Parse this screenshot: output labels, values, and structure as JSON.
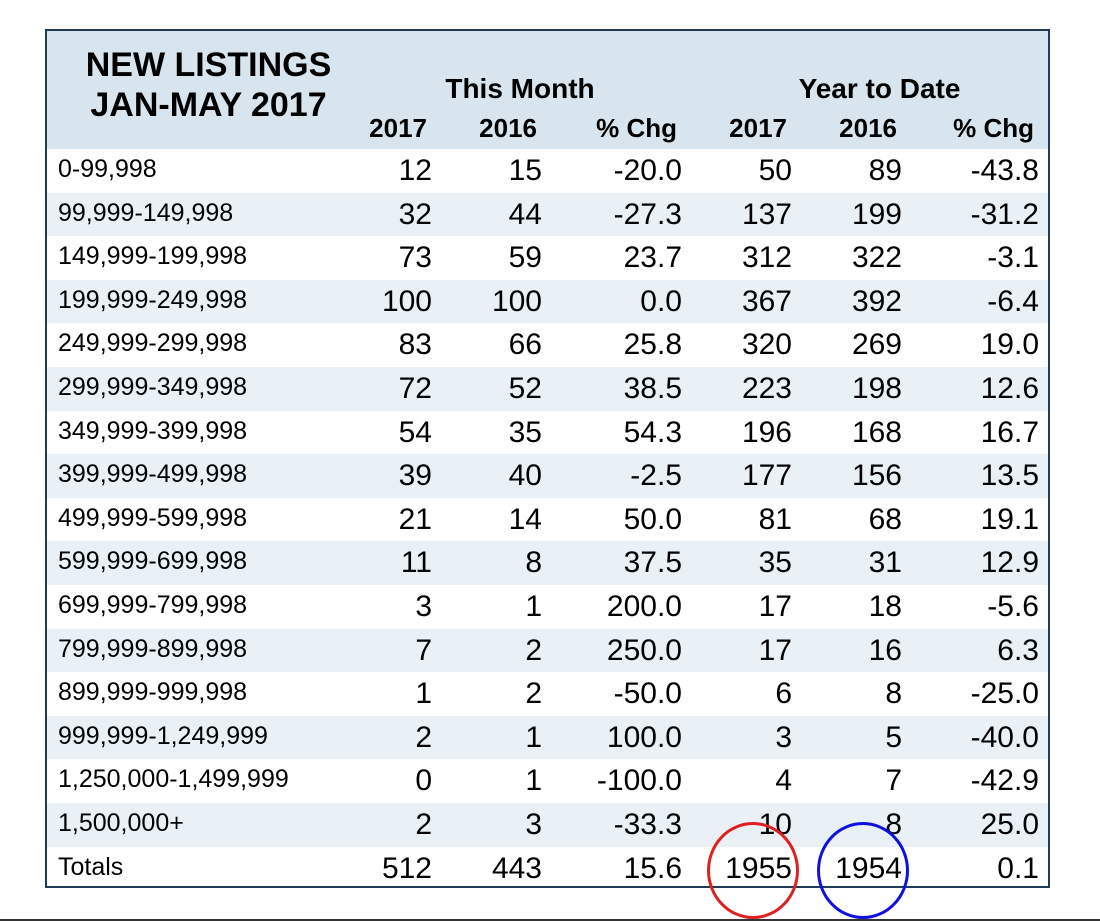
{
  "title": {
    "line1": "NEW LISTINGS",
    "line2": "JAN-MAY 2017"
  },
  "groups": {
    "this_month": "This Month",
    "year_to_date": "Year to Date"
  },
  "columns": [
    "2017",
    "2016",
    "% Chg",
    "2017",
    "2016",
    "% Chg"
  ],
  "rows": [
    {
      "label": "0-99,998",
      "values": [
        "12",
        "15",
        "-20.0",
        "50",
        "89",
        "-43.8"
      ]
    },
    {
      "label": "99,999-149,998",
      "values": [
        "32",
        "44",
        "-27.3",
        "137",
        "199",
        "-31.2"
      ]
    },
    {
      "label": "149,999-199,998",
      "values": [
        "73",
        "59",
        "23.7",
        "312",
        "322",
        "-3.1"
      ]
    },
    {
      "label": "199,999-249,998",
      "values": [
        "100",
        "100",
        "0.0",
        "367",
        "392",
        "-6.4"
      ]
    },
    {
      "label": "249,999-299,998",
      "values": [
        "83",
        "66",
        "25.8",
        "320",
        "269",
        "19.0"
      ]
    },
    {
      "label": "299,999-349,998",
      "values": [
        "72",
        "52",
        "38.5",
        "223",
        "198",
        "12.6"
      ]
    },
    {
      "label": "349,999-399,998",
      "values": [
        "54",
        "35",
        "54.3",
        "196",
        "168",
        "16.7"
      ]
    },
    {
      "label": "399,999-499,998",
      "values": [
        "39",
        "40",
        "-2.5",
        "177",
        "156",
        "13.5"
      ]
    },
    {
      "label": "499,999-599,998",
      "values": [
        "21",
        "14",
        "50.0",
        "81",
        "68",
        "19.1"
      ]
    },
    {
      "label": "599,999-699,998",
      "values": [
        "11",
        "8",
        "37.5",
        "35",
        "31",
        "12.9"
      ]
    },
    {
      "label": "699,999-799,998",
      "values": [
        "3",
        "1",
        "200.0",
        "17",
        "18",
        "-5.6"
      ]
    },
    {
      "label": "799,999-899,998",
      "values": [
        "7",
        "2",
        "250.0",
        "17",
        "16",
        "6.3"
      ]
    },
    {
      "label": "899,999-999,998",
      "values": [
        "1",
        "2",
        "-50.0",
        "6",
        "8",
        "-25.0"
      ]
    },
    {
      "label": "999,999-1,249,999",
      "values": [
        "2",
        "1",
        "100.0",
        "3",
        "5",
        "-40.0"
      ]
    },
    {
      "label": "1,250,000-1,499,999",
      "values": [
        "0",
        "1",
        "-100.0",
        "4",
        "7",
        "-42.9"
      ]
    },
    {
      "label": "1,500,000+",
      "values": [
        "2",
        "3",
        "-33.3",
        "10",
        "8",
        "25.0"
      ]
    },
    {
      "label": "Totals",
      "values": [
        "512",
        "443",
        "15.6",
        "1955",
        "1954",
        "0.1"
      ]
    }
  ],
  "colors": {
    "frame": "#1e3c5a",
    "header_bg": "#d9e5ee",
    "alt_row_bg": "#e9f1f7",
    "circle_red": "#e02020",
    "circle_blue": "#1010e0"
  }
}
